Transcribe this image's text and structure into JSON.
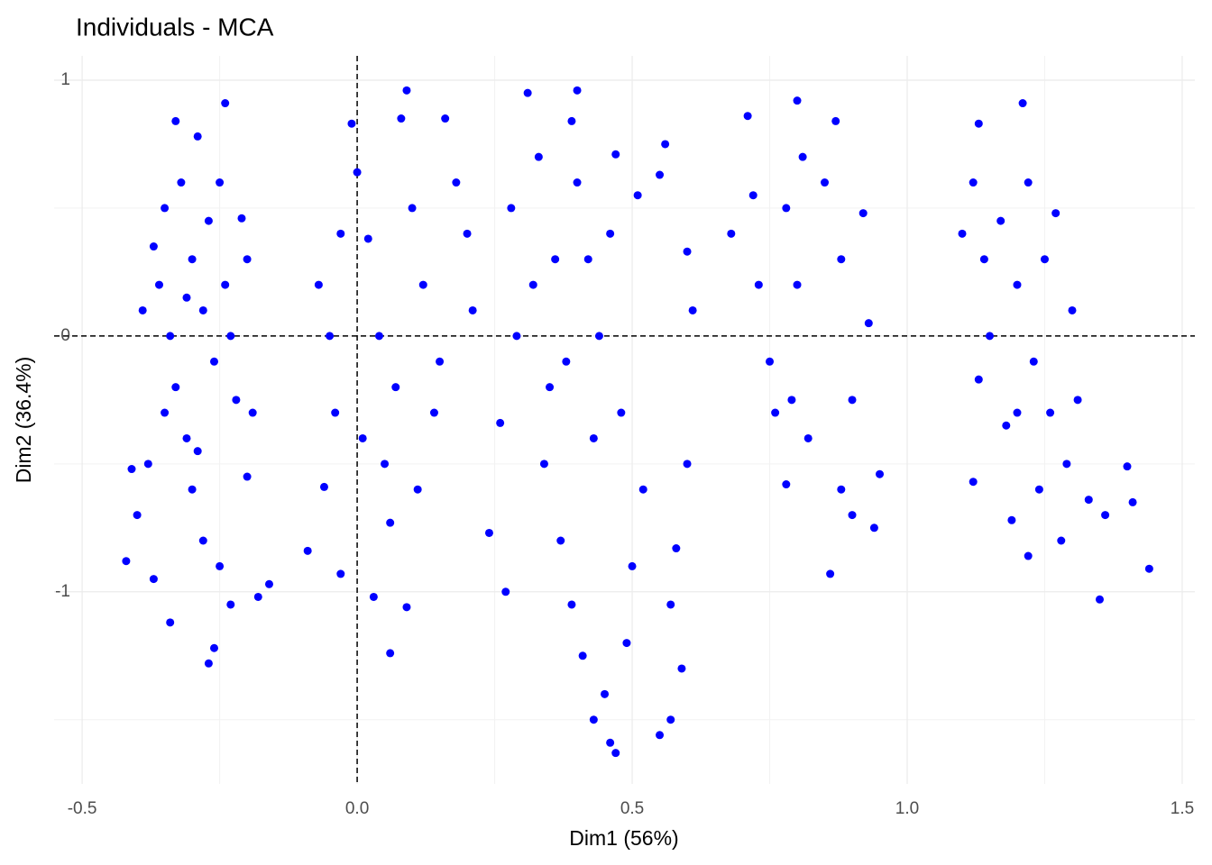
{
  "chart_data": {
    "type": "scatter",
    "title": "Individuals - MCA",
    "xlabel": "Dim1 (56%)",
    "ylabel": "Dim2 (36.4%)",
    "color": "#0000ff",
    "xlim": [
      -0.551,
      1.523
    ],
    "ylim": [
      -1.751,
      1.095
    ],
    "xticks": [
      -0.5,
      {
        "value": 0,
        "label": "0.0"
      },
      0.5,
      {
        "value": 1,
        "label": "1.0"
      },
      1.5
    ],
    "yticks": [
      1,
      0,
      -1
    ],
    "grid": true,
    "x_minor_grid": [
      -0.25,
      0.25,
      0.75,
      1.25
    ],
    "y_minor_grid": [
      0.5,
      -0.5,
      -1.5
    ],
    "hlines": [
      0
    ],
    "vlines": [
      0
    ],
    "x": [
      -0.35,
      -0.3,
      -0.28,
      -0.33,
      -0.31,
      -0.36,
      -0.25,
      -0.26,
      -0.29,
      -0.33,
      -0.24,
      -0.38,
      -0.4,
      -0.42,
      -0.37,
      -0.34,
      -0.27,
      -0.26,
      -0.23,
      -0.18,
      -0.16,
      -0.2,
      -0.19,
      -0.21,
      -0.2,
      -0.23,
      -0.22,
      -0.32,
      -0.34,
      -0.3,
      -0.28,
      -0.25,
      -0.41,
      -0.39,
      -0.37,
      -0.27,
      -0.31,
      -0.35,
      -0.29,
      -0.24,
      -0.09,
      -0.06,
      -0.04,
      -0.07,
      -0.03,
      -0.01,
      0.0,
      0.02,
      0.04,
      0.05,
      0.03,
      -0.03,
      0.06,
      0.08,
      0.09,
      0.1,
      0.12,
      0.14,
      0.11,
      0.09,
      0.06,
      0.16,
      0.18,
      0.2,
      0.21,
      0.15,
      0.07,
      -0.05,
      0.01,
      0.27,
      0.24,
      0.26,
      0.29,
      0.28,
      0.31,
      0.33,
      0.36,
      0.35,
      0.34,
      0.37,
      0.39,
      0.41,
      0.43,
      0.46,
      0.47,
      0.45,
      0.49,
      0.5,
      0.52,
      0.48,
      0.44,
      0.42,
      0.4,
      0.39,
      0.4,
      0.47,
      0.51,
      0.55,
      0.56,
      0.6,
      0.61,
      0.6,
      0.58,
      0.57,
      0.59,
      0.57,
      0.55,
      0.38,
      0.43,
      0.32,
      0.46,
      0.68,
      0.71,
      0.72,
      0.73,
      0.75,
      0.76,
      0.78,
      0.8,
      0.81,
      0.8,
      0.79,
      0.78,
      0.82,
      0.85,
      0.86,
      0.87,
      0.88,
      0.88,
      0.9,
      0.9,
      0.92,
      0.93,
      0.94,
      0.95,
      1.1,
      1.12,
      1.13,
      1.14,
      1.13,
      1.12,
      1.15,
      1.17,
      1.18,
      1.19,
      1.2,
      1.21,
      1.22,
      1.23,
      1.24,
      1.25,
      1.26,
      1.27,
      1.28,
      1.29,
      1.3,
      1.31,
      1.22,
      1.33,
      1.35,
      1.36,
      1.4,
      1.41,
      1.44,
      1.2
    ],
    "values": [
      0.5,
      0.3,
      0.1,
      -0.2,
      -0.4,
      0.2,
      0.6,
      -0.1,
      0.78,
      0.84,
      0.91,
      -0.5,
      -0.7,
      -0.88,
      -0.95,
      -1.12,
      -1.28,
      -1.22,
      -1.05,
      -1.02,
      -0.97,
      -0.55,
      -0.3,
      0.46,
      0.3,
      0.0,
      -0.25,
      0.6,
      0.0,
      -0.6,
      -0.8,
      -0.9,
      -0.52,
      0.1,
      0.35,
      0.45,
      0.15,
      -0.3,
      -0.45,
      0.2,
      -0.84,
      -0.59,
      -0.3,
      0.2,
      0.4,
      0.83,
      0.64,
      0.38,
      0.0,
      -0.5,
      -1.02,
      -0.93,
      -0.73,
      0.85,
      0.96,
      0.5,
      0.2,
      -0.3,
      -0.6,
      -1.06,
      -1.24,
      0.85,
      0.6,
      0.4,
      0.1,
      -0.1,
      -0.2,
      0.0,
      -0.4,
      -1.0,
      -0.77,
      -0.34,
      0.0,
      0.5,
      0.95,
      0.7,
      0.3,
      -0.2,
      -0.5,
      -0.8,
      -1.05,
      -1.25,
      -1.5,
      -1.59,
      -1.63,
      -1.4,
      -1.2,
      -0.9,
      -0.6,
      -0.3,
      0.0,
      0.3,
      0.6,
      0.84,
      0.96,
      0.71,
      0.55,
      0.63,
      0.75,
      0.33,
      0.1,
      -0.5,
      -0.83,
      -1.05,
      -1.3,
      -1.5,
      -1.56,
      -0.1,
      -0.4,
      0.2,
      0.4,
      0.4,
      0.86,
      0.55,
      0.2,
      -0.1,
      -0.3,
      0.5,
      0.92,
      0.7,
      0.2,
      -0.25,
      -0.58,
      -0.4,
      0.6,
      -0.93,
      0.84,
      0.3,
      -0.6,
      -0.25,
      -0.7,
      0.48,
      0.05,
      -0.75,
      -0.54,
      0.4,
      0.6,
      0.83,
      0.3,
      -0.17,
      -0.57,
      0.0,
      0.45,
      -0.35,
      -0.72,
      0.2,
      0.91,
      0.6,
      -0.1,
      -0.6,
      0.3,
      -0.3,
      0.48,
      -0.8,
      -0.5,
      0.1,
      -0.25,
      -0.86,
      -0.64,
      -1.03,
      -0.7,
      -0.51,
      -0.65,
      -0.91,
      -0.3
    ]
  }
}
